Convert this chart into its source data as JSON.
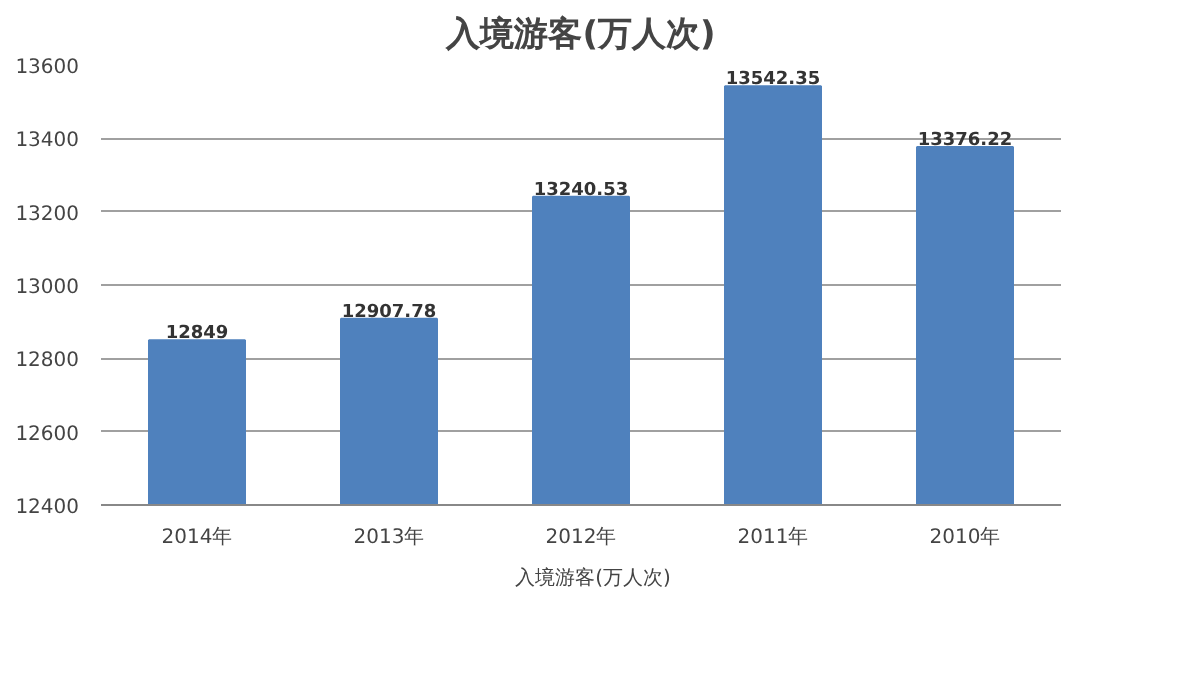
{
  "chart_data": {
    "type": "bar",
    "title": "入境游客(万人次)",
    "categories": [
      "2014年",
      "2013年",
      "2012年",
      "2011年",
      "2010年"
    ],
    "series": [
      {
        "name": "入境游客(万人次)",
        "color": "#4f81bd",
        "values": [
          12849,
          12907.78,
          13240.53,
          13542.35,
          13376.22
        ]
      }
    ],
    "value_labels": [
      "12849",
      "12907.78",
      "13240.53",
      "13542.35",
      "13376.22"
    ],
    "ylim": [
      12400,
      13600
    ],
    "yticks": [
      12400,
      12600,
      12800,
      13000,
      13200,
      13400,
      13600
    ],
    "grid": "y",
    "legend": "bottom"
  }
}
